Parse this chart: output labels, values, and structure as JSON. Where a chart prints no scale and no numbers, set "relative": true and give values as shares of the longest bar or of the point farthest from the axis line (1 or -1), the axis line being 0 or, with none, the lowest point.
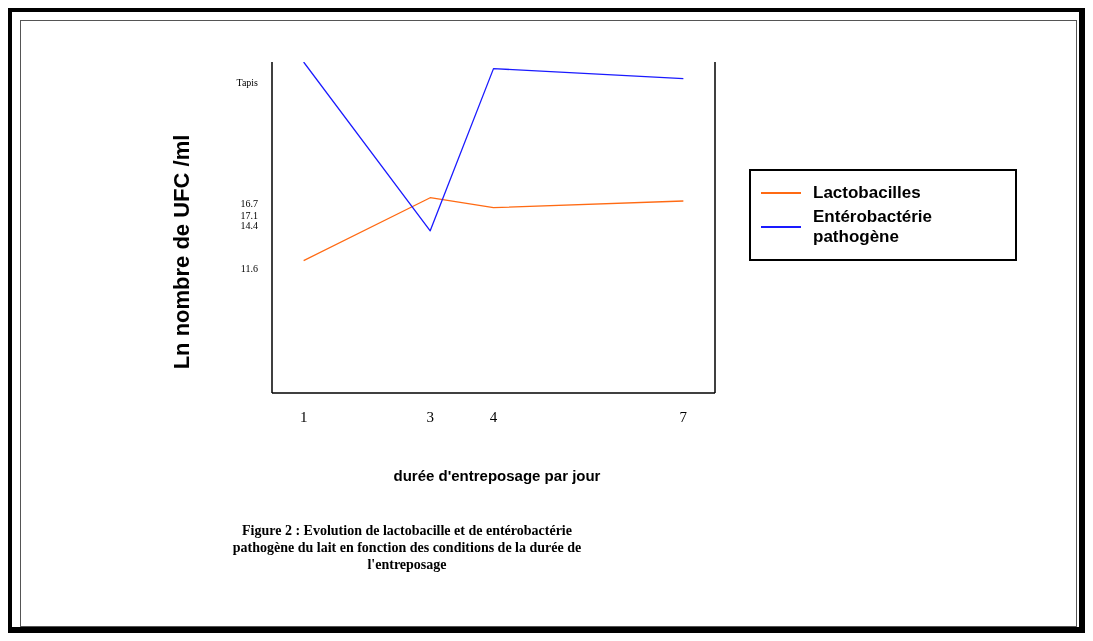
{
  "chart_data": {
    "type": "line",
    "xlabel": "durée d'entreposage par jour",
    "ylabel": "Ln nombre de UFC /ml",
    "relative": true,
    "x": [
      1,
      3,
      4,
      7
    ],
    "xlim": [
      0.5,
      7.5
    ],
    "xticks": [
      1,
      3,
      4,
      7
    ],
    "series": [
      {
        "name": "Lactobacilles",
        "color": "#ff6a13",
        "values": [
          0.4,
          0.59,
          0.56,
          0.58
        ]
      },
      {
        "name": "Entérobactérie pathogène",
        "color": "#1a1aff",
        "values": [
          1.0,
          0.49,
          0.98,
          0.95
        ]
      }
    ],
    "legend": "right",
    "grid": false,
    "annotations": [
      "Tapis",
      "16.7",
      "17.1",
      "14.4",
      "11.6",
      "Figure 2 : Evolution de lactobacille et de entérobactérie pathogène du lait en fonction des conditions de la durée de l'entreposage"
    ]
  }
}
